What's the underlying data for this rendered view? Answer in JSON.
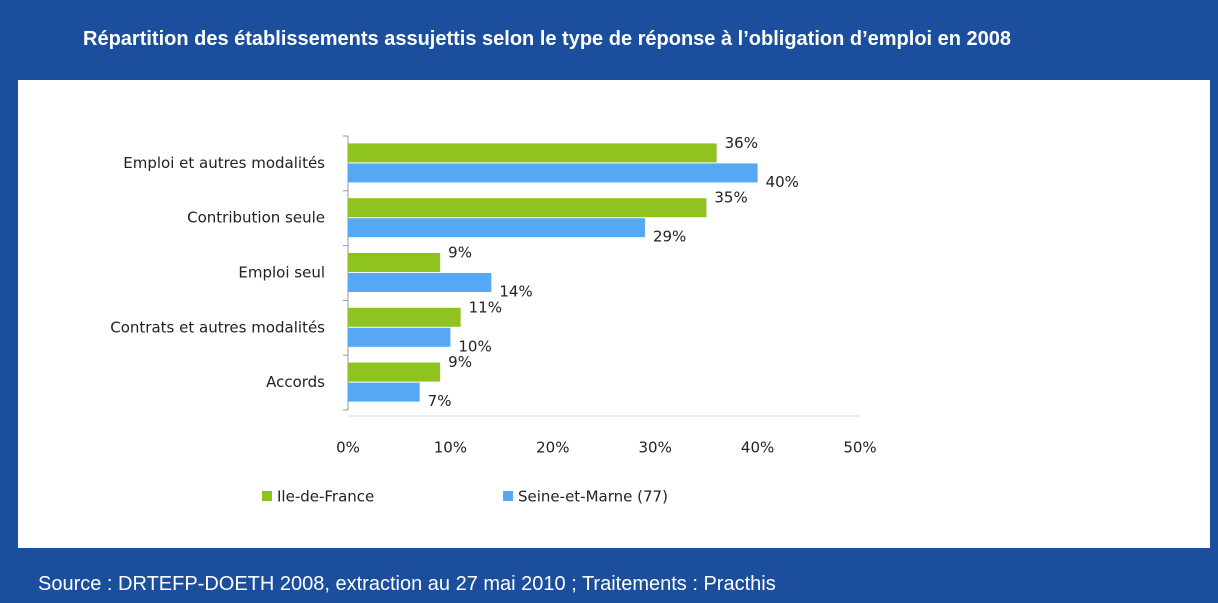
{
  "chart_data": {
    "type": "barh",
    "title": "Répartition des établissements assujettis selon le type de réponse à l’obligation d’emploi en 2008",
    "source": "Source : DRTEFP-DOETH 2008, extraction au 27 mai 2010 ; Traitements : Practhis",
    "categories": [
      "Emploi et autres modalités",
      "Contribution seule",
      "Emploi seul",
      "Contrats et autres modalités",
      "Accords"
    ],
    "series": [
      {
        "name": "Ile-de-France",
        "color": "#8fc31f",
        "values": [
          36,
          35,
          9,
          11,
          9
        ],
        "value_labels": [
          "36%",
          "35%",
          "9%",
          "11%",
          "9%"
        ]
      },
      {
        "name": "Seine-et-Marne (77)",
        "color": "#56a8f5",
        "values": [
          40,
          29,
          14,
          10,
          7
        ],
        "value_labels": [
          "40%",
          "29%",
          "14%",
          "10%",
          "7%"
        ]
      }
    ],
    "xlim": [
      0,
      50
    ],
    "xticks": [
      {
        "value": 0,
        "label": "0%"
      },
      {
        "value": 10,
        "label": "10%"
      },
      {
        "value": 20,
        "label": "20%"
      },
      {
        "value": 30,
        "label": "30%"
      },
      {
        "value": 40,
        "label": "40%"
      },
      {
        "value": 50,
        "label": "50%"
      }
    ],
    "legend": "bottom"
  }
}
